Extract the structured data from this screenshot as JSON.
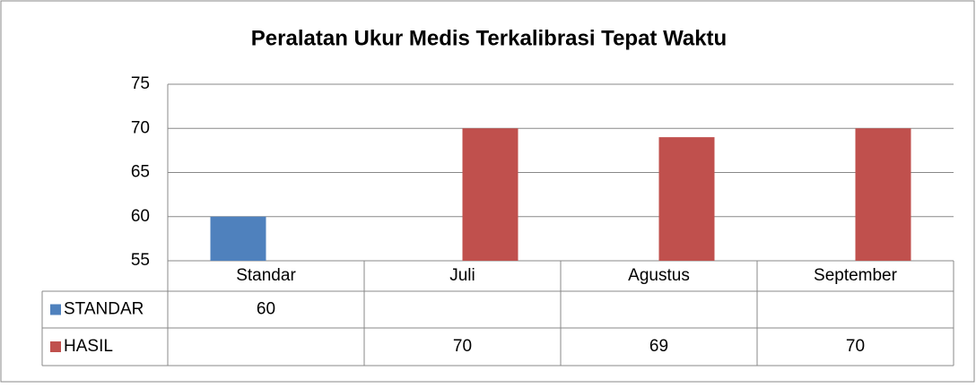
{
  "chart_data": {
    "type": "bar",
    "title": "Peralatan Ukur Medis Terkalibrasi Tepat Waktu",
    "categories": [
      "Standar",
      "Juli",
      "Agustus",
      "September"
    ],
    "series": [
      {
        "name": "STANDAR",
        "color": "#4f81bd",
        "values": [
          60,
          null,
          null,
          null
        ]
      },
      {
        "name": "HASIL",
        "color": "#c0504d",
        "values": [
          null,
          70,
          69,
          70
        ]
      }
    ],
    "ylim": [
      55,
      75
    ],
    "yticks": [
      55,
      60,
      65,
      70,
      75
    ],
    "grid": true,
    "data_table": true
  }
}
